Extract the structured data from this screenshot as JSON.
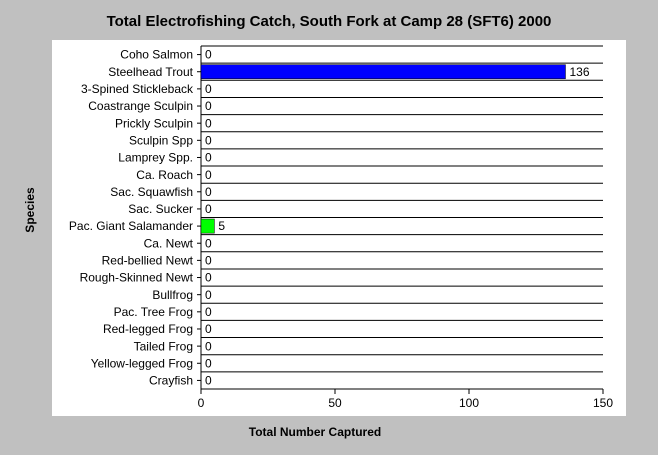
{
  "chart_data": {
    "type": "hbar",
    "title": "Total Electrofishing Catch, South Fork at Camp 28 (SFT6) 2000",
    "x_label": "Total Number Captured",
    "y_label": "Species",
    "categories": [
      "Coho Salmon",
      "Steelhead Trout",
      "3-Spined Stickleback",
      "Coastrange Sculpin",
      "Prickly Sculpin",
      "Sculpin Spp",
      "Lamprey Spp.",
      "Ca. Roach",
      "Sac. Squawfish",
      "Sac. Sucker",
      "Pac. Giant Salamander",
      "Ca. Newt",
      "Red-bellied Newt",
      "Rough-Skinned Newt",
      "Bullfrog",
      "Pac. Tree Frog",
      "Red-legged Frog",
      "Tailed Frog",
      "Yellow-legged Frog",
      "Crayfish"
    ],
    "values": [
      0,
      136,
      0,
      0,
      0,
      0,
      0,
      0,
      0,
      0,
      5,
      0,
      0,
      0,
      0,
      0,
      0,
      0,
      0,
      0
    ],
    "colors": [
      null,
      "#0000ff",
      null,
      null,
      null,
      null,
      null,
      null,
      null,
      null,
      "#00ff00",
      null,
      null,
      null,
      null,
      null,
      null,
      null,
      null,
      null
    ],
    "xlim": [
      0,
      150
    ],
    "xticks": [
      0,
      50,
      100,
      150
    ]
  }
}
